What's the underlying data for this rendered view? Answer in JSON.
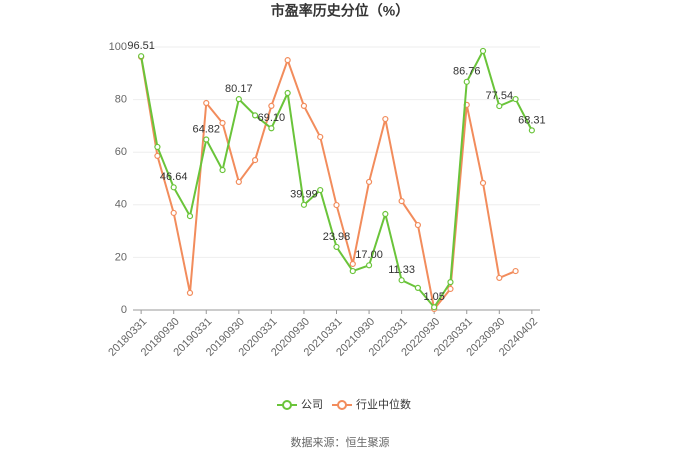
{
  "chart_data": {
    "type": "line",
    "title": "市盈率历史分位（%）",
    "categories": [
      "20180331",
      null,
      "20180930",
      null,
      "20190331",
      null,
      "20190930",
      null,
      "20200331",
      null,
      "20200930",
      null,
      "20210331",
      null,
      "20210930",
      null,
      "20220331",
      null,
      "20220930",
      null,
      "20230331",
      null,
      "20230930",
      null,
      "20240402"
    ],
    "series": [
      {
        "name": "公司",
        "color": "#6ac43a",
        "values": [
          96.51,
          62,
          46.64,
          35.7,
          64.82,
          53.2,
          80.17,
          74,
          69.1,
          82.5,
          39.99,
          45.6,
          23.98,
          14.8,
          17.0,
          36.5,
          11.33,
          8.4,
          1.05,
          10.6,
          86.76,
          98.5,
          77.54,
          80.2,
          68.31
        ],
        "value_labels": [
          "96.51",
          null,
          "46.64",
          null,
          "64.82",
          null,
          "80.17",
          null,
          "69.10",
          null,
          "39.99",
          null,
          "23.98",
          null,
          "17.00",
          null,
          "11.33",
          null,
          "1.05",
          null,
          "86.76",
          null,
          "77.54",
          null,
          "68.31"
        ]
      },
      {
        "name": "行业中位数",
        "color": "#f28c5c",
        "values": [
          96.2,
          58.6,
          36.9,
          6.5,
          78.7,
          71.1,
          48.7,
          57,
          77.6,
          95,
          77.6,
          65.8,
          39.9,
          17.5,
          48.7,
          72.6,
          41.4,
          32.3,
          0.4,
          8,
          78,
          48.3,
          12.2,
          14.8,
          null
        ]
      }
    ],
    "ylim": [
      0,
      100
    ],
    "yticks": [
      0,
      20,
      40,
      60,
      80,
      100
    ],
    "grid": true,
    "legend": "bottom",
    "source": "数据来源：恒生聚源"
  }
}
